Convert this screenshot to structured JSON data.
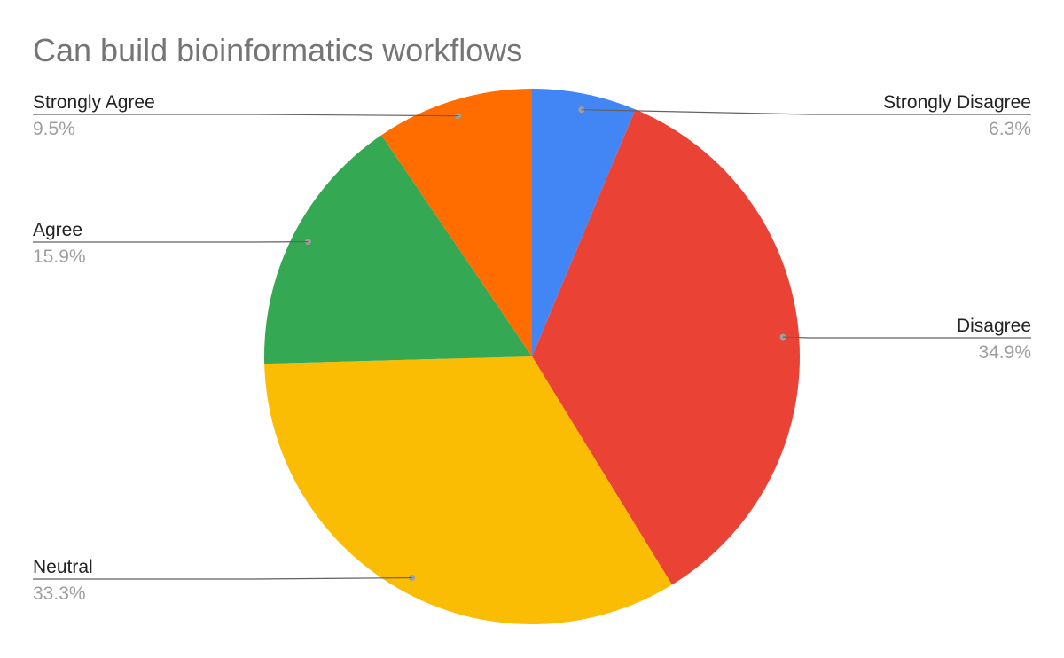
{
  "chart_data": {
    "type": "pie",
    "title": "Can build bioinformatics workflows",
    "start_angle_deg": 0,
    "direction": "clockwise",
    "slices": [
      {
        "label": "Strongly Disagree",
        "value": 6.3,
        "display": "6.3%",
        "color": "#4285f4",
        "label_side": "right"
      },
      {
        "label": "Disagree",
        "value": 34.9,
        "display": "34.9%",
        "color": "#ea4335",
        "label_side": "right"
      },
      {
        "label": "Neutral",
        "value": 33.3,
        "display": "33.3%",
        "color": "#fbbc04",
        "label_side": "left"
      },
      {
        "label": "Agree",
        "value": 15.9,
        "display": "15.9%",
        "color": "#34a853",
        "label_side": "left"
      },
      {
        "label": "Strongly Agree",
        "value": 9.5,
        "display": "9.5%",
        "color": "#ff6d01",
        "label_side": "left"
      }
    ],
    "legend": "none",
    "data_labels": "outside-with-leader-lines"
  }
}
